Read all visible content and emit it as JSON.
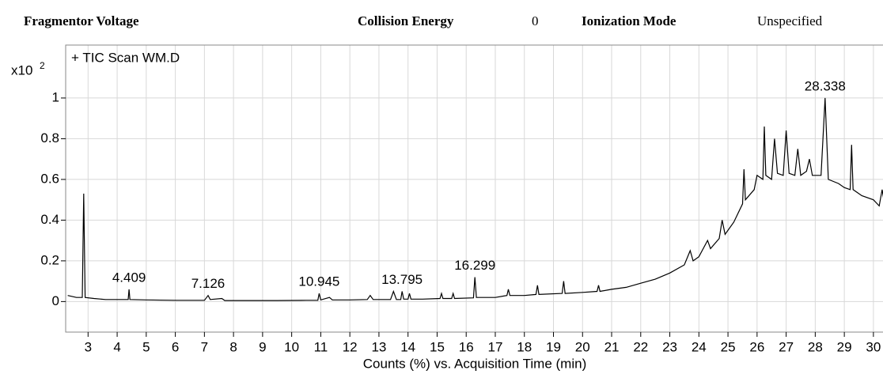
{
  "header": {
    "fragmentor_label": "Fragmentor Voltage",
    "collision_label": "Collision Energy",
    "collision_value": "0",
    "ionization_label": "Ionization Mode",
    "ionization_value": "Unspecified"
  },
  "chart_data": {
    "type": "line",
    "annotation": "+ TIC Scan WM.D",
    "y_multiplier": {
      "base": "x10",
      "exponent": "2"
    },
    "xlabel": "Counts (%) vs. Acquisition Time (min)",
    "xlim": [
      2.23,
      30.52
    ],
    "ylim": [
      -0.15,
      1.26
    ],
    "xticks": [
      3,
      4,
      5,
      6,
      7,
      8,
      9,
      10,
      11,
      12,
      13,
      14,
      15,
      16,
      17,
      18,
      19,
      20,
      21,
      22,
      23,
      24,
      25,
      26,
      27,
      28,
      29,
      30
    ],
    "yticks": [
      0,
      0.2,
      0.4,
      0.6,
      0.8,
      1
    ],
    "grid": true,
    "series": [
      {
        "name": "TIC",
        "color": "#000000",
        "x": [
          2.3,
          2.6,
          2.8,
          2.85,
          2.9,
          3.2,
          3.6,
          4.0,
          4.38,
          4.409,
          4.44,
          5,
          6,
          7.0,
          7.126,
          7.2,
          7.6,
          7.7,
          8.5,
          9.5,
          10.5,
          10.9,
          10.945,
          11.0,
          11.3,
          11.4,
          12.0,
          12.6,
          12.7,
          12.8,
          13.4,
          13.5,
          13.6,
          13.75,
          13.795,
          13.85,
          14.0,
          14.05,
          14.1,
          14.5,
          15.1,
          15.15,
          15.2,
          15.5,
          15.55,
          15.6,
          16.25,
          16.299,
          16.35,
          17.0,
          17.4,
          17.45,
          17.5,
          18.0,
          18.4,
          18.45,
          18.5,
          19.3,
          19.35,
          19.4,
          20,
          20.5,
          20.55,
          20.6,
          21,
          21.5,
          22,
          22.5,
          23,
          23.5,
          23.7,
          23.8,
          24,
          24.3,
          24.4,
          24.7,
          24.8,
          24.9,
          25.2,
          25.5,
          25.55,
          25.6,
          25.9,
          26.0,
          26.2,
          26.25,
          26.3,
          26.5,
          26.6,
          26.7,
          26.9,
          27.0,
          27.1,
          27.3,
          27.4,
          27.5,
          27.7,
          27.8,
          27.9,
          28.2,
          28.338,
          28.45,
          28.8,
          29.0,
          29.2,
          29.25,
          29.3,
          29.6,
          30.0,
          30.2,
          30.3,
          30.4,
          30.52
        ],
        "values": [
          0.03,
          0.02,
          0.02,
          0.53,
          0.02,
          0.015,
          0.01,
          0.01,
          0.01,
          0.06,
          0.01,
          0.008,
          0.006,
          0.006,
          0.03,
          0.01,
          0.015,
          0.005,
          0.005,
          0.005,
          0.006,
          0.006,
          0.04,
          0.008,
          0.02,
          0.008,
          0.008,
          0.01,
          0.03,
          0.01,
          0.01,
          0.05,
          0.01,
          0.01,
          0.05,
          0.012,
          0.012,
          0.04,
          0.012,
          0.012,
          0.015,
          0.04,
          0.015,
          0.015,
          0.04,
          0.015,
          0.018,
          0.12,
          0.02,
          0.02,
          0.03,
          0.06,
          0.03,
          0.03,
          0.035,
          0.08,
          0.035,
          0.04,
          0.1,
          0.04,
          0.045,
          0.05,
          0.08,
          0.05,
          0.06,
          0.07,
          0.09,
          0.11,
          0.14,
          0.18,
          0.25,
          0.2,
          0.22,
          0.3,
          0.26,
          0.31,
          0.4,
          0.33,
          0.39,
          0.48,
          0.65,
          0.5,
          0.55,
          0.62,
          0.6,
          0.86,
          0.62,
          0.6,
          0.8,
          0.63,
          0.62,
          0.84,
          0.63,
          0.62,
          0.75,
          0.62,
          0.64,
          0.7,
          0.62,
          0.62,
          1.0,
          0.6,
          0.58,
          0.56,
          0.55,
          0.77,
          0.55,
          0.52,
          0.5,
          0.47,
          0.55,
          0.46,
          0.44
        ]
      }
    ],
    "peaks": {
      "x": [
        4.409,
        7.126,
        10.945,
        13.795,
        16.299,
        28.338
      ],
      "values": [
        0.06,
        0.03,
        0.04,
        0.05,
        0.12,
        1.0
      ]
    }
  }
}
